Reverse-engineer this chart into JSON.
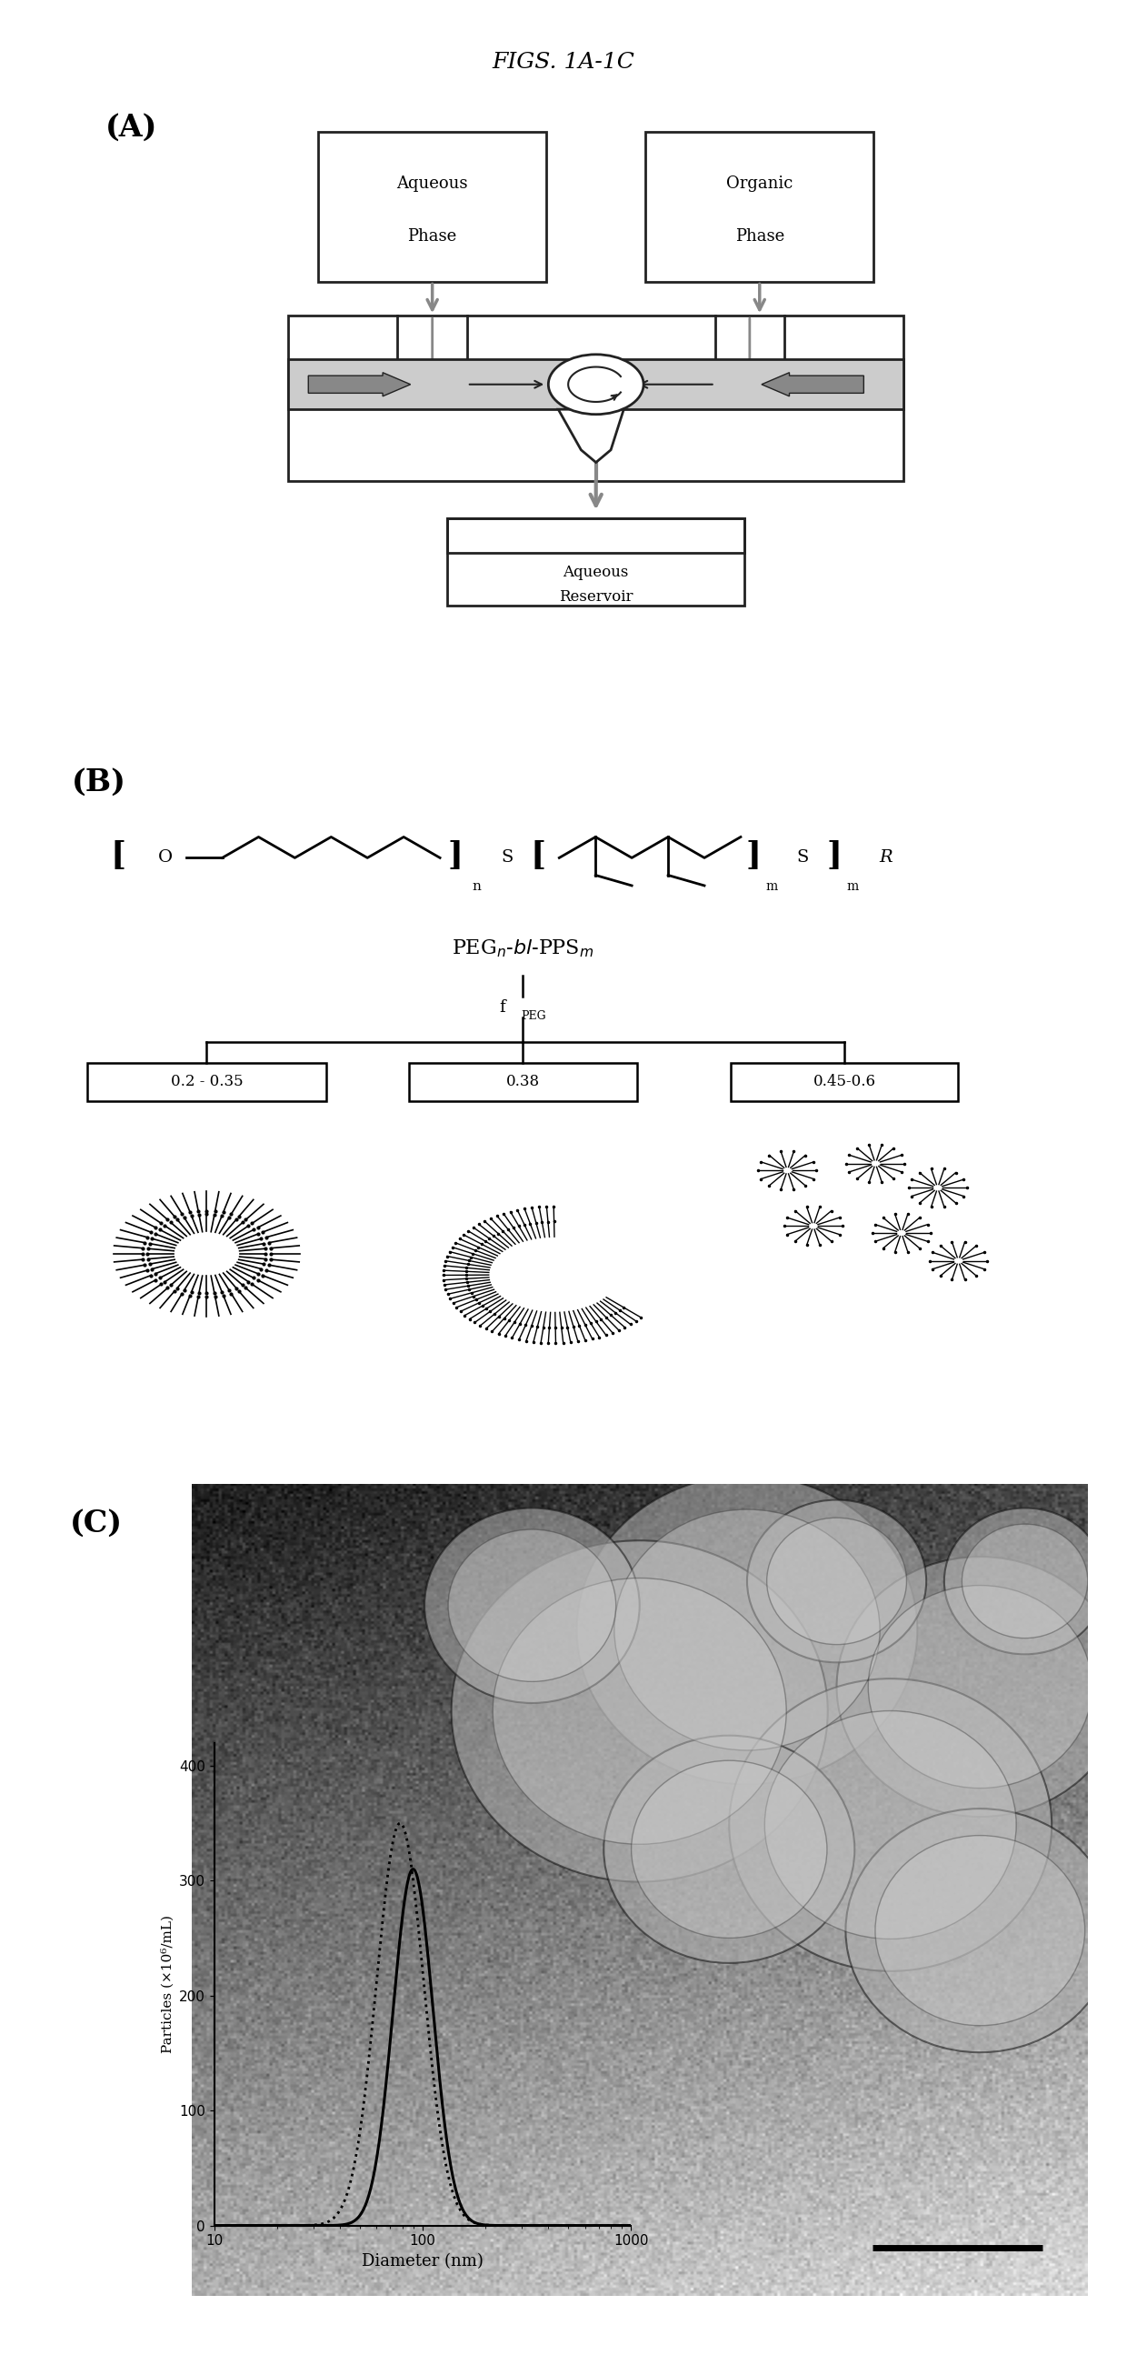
{
  "title": "FIGS. 1A-1C",
  "panel_A_label": "(A)",
  "panel_B_label": "(B)",
  "panel_C_label": "(C)",
  "background_color": "#ffffff",
  "text_color": "#000000",
  "plot_C": {
    "xlabel": "Diameter (nm)",
    "ylabel": "Particles (×10⁶/mL)",
    "xlim": [
      10,
      1000
    ],
    "ylim": [
      0,
      420
    ],
    "yticks": [
      0,
      100,
      200,
      300,
      400
    ],
    "peak_x": 90,
    "peak_y": 310,
    "sigma": 0.22,
    "dotted_peak_x": 78,
    "dotted_peak_y": 350,
    "dotted_sigma": 0.26
  },
  "range_labels": [
    "0.2 - 0.35",
    "0.38",
    "0.45-0.6"
  ]
}
